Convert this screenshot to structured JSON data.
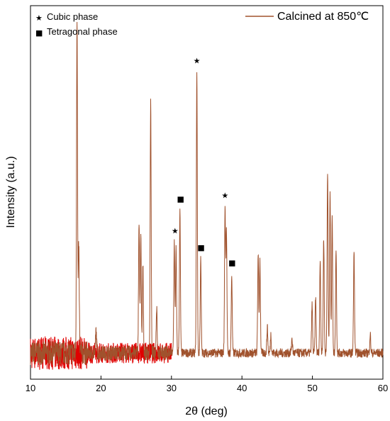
{
  "chart_data": {
    "type": "line",
    "xlabel": "2θ (deg)",
    "ylabel": "Intensity (a.u.)",
    "xlim": [
      10,
      60
    ],
    "ylim": [
      0,
      100
    ],
    "x_ticks": [
      10,
      20,
      30,
      40,
      50,
      60
    ],
    "grid": false,
    "legend_placement": "top-right",
    "series": [
      {
        "name": "Calcined at 850℃",
        "color": "#a0522d",
        "noise_color": "#e00000",
        "baseline": 7,
        "peaks": [
          {
            "x": 16.6,
            "y": 98
          },
          {
            "x": 16.85,
            "y": 35
          },
          {
            "x": 19.3,
            "y": 13
          },
          {
            "x": 25.4,
            "y": 42
          },
          {
            "x": 25.65,
            "y": 38
          },
          {
            "x": 25.95,
            "y": 30
          },
          {
            "x": 27.05,
            "y": 74
          },
          {
            "x": 27.9,
            "y": 20
          },
          {
            "x": 30.4,
            "y": 37
          },
          {
            "x": 30.65,
            "y": 35
          },
          {
            "x": 31.2,
            "y": 45
          },
          {
            "x": 33.6,
            "y": 82
          },
          {
            "x": 34.15,
            "y": 32
          },
          {
            "x": 37.6,
            "y": 46
          },
          {
            "x": 37.8,
            "y": 40
          },
          {
            "x": 38.55,
            "y": 28
          },
          {
            "x": 42.3,
            "y": 34
          },
          {
            "x": 42.55,
            "y": 32
          },
          {
            "x": 43.6,
            "y": 14
          },
          {
            "x": 44.1,
            "y": 12
          },
          {
            "x": 47.1,
            "y": 11
          },
          {
            "x": 49.95,
            "y": 20
          },
          {
            "x": 50.45,
            "y": 22
          },
          {
            "x": 51.1,
            "y": 32
          },
          {
            "x": 51.6,
            "y": 38
          },
          {
            "x": 52.15,
            "y": 56
          },
          {
            "x": 52.5,
            "y": 50
          },
          {
            "x": 52.8,
            "y": 44
          },
          {
            "x": 53.35,
            "y": 35
          },
          {
            "x": 55.9,
            "y": 34
          },
          {
            "x": 58.2,
            "y": 12
          }
        ]
      }
    ],
    "legend": [
      {
        "symbol": "★",
        "label": "Cubic phase"
      },
      {
        "symbol": "■",
        "label": "Tetragonal phase"
      }
    ],
    "annotations": [
      {
        "symbol": "★",
        "x": 30.5,
        "y": 39
      },
      {
        "symbol": "■",
        "x": 31.3,
        "y": 47.5
      },
      {
        "symbol": "★",
        "x": 33.6,
        "y": 84.5
      },
      {
        "symbol": "■",
        "x": 34.2,
        "y": 34.5
      },
      {
        "symbol": "★",
        "x": 37.6,
        "y": 48.5
      },
      {
        "symbol": "■",
        "x": 38.6,
        "y": 30.5
      }
    ]
  }
}
